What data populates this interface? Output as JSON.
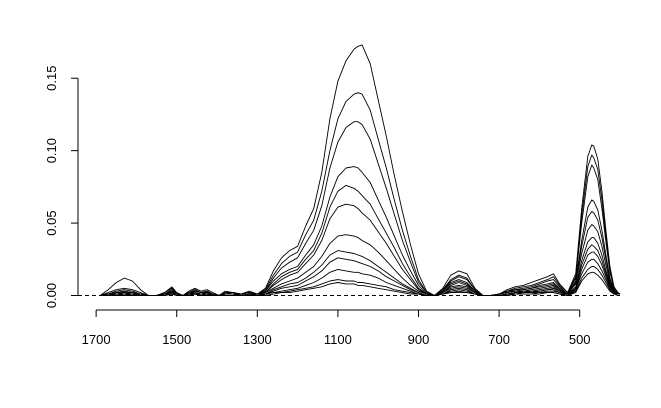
{
  "chart_data": {
    "type": "line",
    "title": "",
    "xlabel": "",
    "ylabel": "",
    "x_reversed": true,
    "xlim": [
      1745,
      400
    ],
    "ylim": [
      -0.01,
      0.175
    ],
    "x_ticks": [
      1700,
      1500,
      1300,
      1100,
      900,
      700,
      500
    ],
    "y_ticks": [
      0.0,
      0.05,
      0.1,
      0.15
    ],
    "x_tick_labels": [
      "1700",
      "1500",
      "1300",
      "1100",
      "900",
      "700",
      "500"
    ],
    "y_tick_labels": [
      "0.00",
      "0.05",
      "0.10",
      "0.15"
    ],
    "reference_line": {
      "y": 0.0,
      "style": "dashed"
    },
    "grid": false,
    "legend": "none",
    "line_color": "#000000",
    "x": [
      1690,
      1670,
      1650,
      1630,
      1610,
      1590,
      1570,
      1550,
      1530,
      1512,
      1500,
      1485,
      1470,
      1455,
      1440,
      1425,
      1410,
      1395,
      1380,
      1360,
      1340,
      1320,
      1300,
      1280,
      1260,
      1240,
      1220,
      1200,
      1180,
      1160,
      1140,
      1120,
      1100,
      1080,
      1060,
      1050,
      1040,
      1020,
      1000,
      980,
      960,
      940,
      920,
      900,
      880,
      860,
      840,
      820,
      800,
      780,
      760,
      740,
      720,
      700,
      680,
      660,
      640,
      620,
      600,
      580,
      565,
      550,
      530,
      510,
      495,
      480,
      470,
      465,
      455,
      445,
      435,
      425,
      415,
      405,
      400
    ],
    "series": [
      {
        "values": [
          0,
          0.004,
          0.009,
          0.012,
          0.01,
          0.004,
          0,
          0,
          0.002,
          0.005,
          0.001,
          0,
          0.003,
          0.005,
          0.003,
          0.004,
          0.002,
          0,
          0.003,
          0.002,
          0.001,
          0.003,
          0.001,
          0.005,
          0.017,
          0.026,
          0.031,
          0.034,
          0.048,
          0.06,
          0.085,
          0.122,
          0.148,
          0.162,
          0.17,
          0.172,
          0.173,
          0.16,
          0.135,
          0.11,
          0.083,
          0.058,
          0.035,
          0.015,
          0.003,
          0,
          0.005,
          0.014,
          0.017,
          0.015,
          0.005,
          0,
          0,
          0.001,
          0.004,
          0.006,
          0.007,
          0.009,
          0.011,
          0.013,
          0.015,
          0.008,
          0.002,
          0.015,
          0.06,
          0.096,
          0.104,
          0.103,
          0.094,
          0.072,
          0.045,
          0.02,
          0.006,
          0.002,
          0.001
        ]
      },
      {
        "values": [
          0,
          0.002,
          0.004,
          0.005,
          0.004,
          0.002,
          0,
          0,
          0.002,
          0.006,
          0.002,
          0,
          0.002,
          0.004,
          0.002,
          0.003,
          0.001,
          0,
          0.002,
          0.002,
          0.001,
          0.002,
          0.001,
          0.004,
          0.014,
          0.022,
          0.027,
          0.03,
          0.042,
          0.052,
          0.072,
          0.1,
          0.122,
          0.134,
          0.139,
          0.14,
          0.139,
          0.128,
          0.108,
          0.088,
          0.066,
          0.045,
          0.027,
          0.011,
          0.002,
          0,
          0.004,
          0.011,
          0.014,
          0.012,
          0.004,
          0,
          0,
          0.001,
          0.003,
          0.005,
          0.006,
          0.007,
          0.009,
          0.011,
          0.013,
          0.007,
          0.002,
          0.013,
          0.055,
          0.089,
          0.097,
          0.095,
          0.087,
          0.066,
          0.041,
          0.018,
          0.005,
          0.002,
          0.001
        ]
      },
      {
        "values": [
          0,
          0.001,
          0.003,
          0.004,
          0.003,
          0.001,
          0,
          0,
          0.002,
          0.005,
          0.002,
          0,
          0.002,
          0.004,
          0.002,
          0.003,
          0.001,
          0,
          0.002,
          0.002,
          0.001,
          0.002,
          0.001,
          0.003,
          0.012,
          0.019,
          0.023,
          0.026,
          0.036,
          0.045,
          0.062,
          0.088,
          0.106,
          0.116,
          0.12,
          0.12,
          0.118,
          0.108,
          0.091,
          0.074,
          0.056,
          0.038,
          0.023,
          0.009,
          0.002,
          0,
          0.003,
          0.01,
          0.013,
          0.011,
          0.004,
          0,
          0,
          0.001,
          0.003,
          0.004,
          0.005,
          0.006,
          0.008,
          0.01,
          0.011,
          0.006,
          0.001,
          0.012,
          0.05,
          0.082,
          0.09,
          0.088,
          0.08,
          0.06,
          0.037,
          0.016,
          0.005,
          0.002,
          0.001
        ]
      },
      {
        "values": [
          0,
          0.001,
          0.002,
          0.003,
          0.002,
          0.001,
          0,
          0,
          0.001,
          0.004,
          0.001,
          0,
          0.002,
          0.003,
          0.002,
          0.002,
          0.001,
          0,
          0.002,
          0.001,
          0.001,
          0.002,
          0.001,
          0.003,
          0.01,
          0.015,
          0.018,
          0.02,
          0.028,
          0.035,
          0.048,
          0.068,
          0.082,
          0.088,
          0.089,
          0.088,
          0.085,
          0.078,
          0.066,
          0.054,
          0.041,
          0.028,
          0.017,
          0.007,
          0.001,
          0,
          0.003,
          0.009,
          0.011,
          0.009,
          0.003,
          0,
          0,
          0.001,
          0.002,
          0.004,
          0.004,
          0.005,
          0.007,
          0.008,
          0.009,
          0.005,
          0.001,
          0.01,
          0.038,
          0.061,
          0.066,
          0.065,
          0.059,
          0.045,
          0.028,
          0.012,
          0.004,
          0.001,
          0.001
        ]
      },
      {
        "values": [
          0,
          0.001,
          0.002,
          0.003,
          0.002,
          0.001,
          0,
          0,
          0.001,
          0.003,
          0.001,
          0,
          0.001,
          0.003,
          0.002,
          0.002,
          0.001,
          0,
          0.001,
          0.001,
          0.001,
          0.002,
          0.001,
          0.002,
          0.008,
          0.013,
          0.016,
          0.018,
          0.025,
          0.031,
          0.043,
          0.061,
          0.072,
          0.076,
          0.074,
          0.072,
          0.069,
          0.063,
          0.053,
          0.043,
          0.033,
          0.022,
          0.013,
          0.005,
          0.001,
          0,
          0.003,
          0.008,
          0.01,
          0.008,
          0.003,
          0,
          0,
          0.001,
          0.002,
          0.003,
          0.004,
          0.005,
          0.006,
          0.007,
          0.008,
          0.004,
          0.001,
          0.009,
          0.034,
          0.054,
          0.058,
          0.057,
          0.052,
          0.04,
          0.025,
          0.011,
          0.003,
          0.001,
          0.001
        ]
      },
      {
        "values": [
          0,
          0.001,
          0.002,
          0.002,
          0.002,
          0.001,
          0,
          0,
          0.001,
          0.003,
          0.001,
          0,
          0.001,
          0.002,
          0.001,
          0.002,
          0.001,
          0,
          0.001,
          0.001,
          0,
          0.001,
          0.001,
          0.002,
          0.007,
          0.011,
          0.014,
          0.016,
          0.022,
          0.028,
          0.038,
          0.053,
          0.061,
          0.063,
          0.062,
          0.06,
          0.057,
          0.052,
          0.044,
          0.036,
          0.027,
          0.018,
          0.011,
          0.004,
          0.001,
          0,
          0.002,
          0.007,
          0.009,
          0.007,
          0.003,
          0,
          0,
          0.001,
          0.002,
          0.003,
          0.003,
          0.004,
          0.005,
          0.006,
          0.007,
          0.004,
          0.001,
          0.008,
          0.029,
          0.045,
          0.049,
          0.048,
          0.044,
          0.034,
          0.021,
          0.009,
          0.003,
          0.001,
          0.001
        ]
      },
      {
        "values": [
          0,
          0.001,
          0.001,
          0.002,
          0.001,
          0.001,
          0,
          0,
          0.001,
          0.002,
          0.001,
          0,
          0.001,
          0.002,
          0.001,
          0.001,
          0.001,
          0,
          0.001,
          0.001,
          0,
          0.001,
          0,
          0.002,
          0.005,
          0.008,
          0.01,
          0.012,
          0.016,
          0.02,
          0.027,
          0.036,
          0.041,
          0.042,
          0.041,
          0.04,
          0.038,
          0.035,
          0.03,
          0.024,
          0.018,
          0.012,
          0.007,
          0.003,
          0.001,
          0,
          0.002,
          0.006,
          0.007,
          0.006,
          0.002,
          0,
          0,
          0,
          0.001,
          0.002,
          0.003,
          0.003,
          0.004,
          0.005,
          0.006,
          0.003,
          0.001,
          0.006,
          0.024,
          0.037,
          0.04,
          0.04,
          0.036,
          0.028,
          0.017,
          0.008,
          0.002,
          0.001,
          0.001
        ]
      },
      {
        "values": [
          0,
          0,
          0.001,
          0.001,
          0.001,
          0,
          0,
          0,
          0.001,
          0.002,
          0.001,
          0,
          0.001,
          0.001,
          0.001,
          0.001,
          0,
          0,
          0.001,
          0.001,
          0,
          0.001,
          0,
          0.001,
          0.004,
          0.006,
          0.008,
          0.009,
          0.012,
          0.016,
          0.021,
          0.028,
          0.031,
          0.03,
          0.029,
          0.028,
          0.027,
          0.024,
          0.02,
          0.016,
          0.012,
          0.008,
          0.005,
          0.002,
          0,
          0,
          0.002,
          0.005,
          0.006,
          0.005,
          0.002,
          0,
          0,
          0,
          0.001,
          0.002,
          0.002,
          0.003,
          0.003,
          0.004,
          0.005,
          0.003,
          0.001,
          0.005,
          0.021,
          0.032,
          0.035,
          0.034,
          0.031,
          0.024,
          0.015,
          0.007,
          0.002,
          0.001,
          0.001
        ]
      },
      {
        "values": [
          0,
          0,
          0.001,
          0.001,
          0.001,
          0,
          0,
          0,
          0.001,
          0.002,
          0,
          0,
          0.001,
          0.001,
          0.001,
          0.001,
          0,
          0,
          0.001,
          0.001,
          0,
          0.001,
          0,
          0.001,
          0.003,
          0.005,
          0.006,
          0.007,
          0.01,
          0.013,
          0.017,
          0.023,
          0.026,
          0.025,
          0.024,
          0.023,
          0.022,
          0.02,
          0.017,
          0.013,
          0.01,
          0.007,
          0.004,
          0.002,
          0,
          0,
          0.001,
          0.004,
          0.005,
          0.004,
          0.001,
          0,
          0,
          0,
          0.001,
          0.002,
          0.002,
          0.002,
          0.003,
          0.004,
          0.004,
          0.002,
          0.001,
          0.004,
          0.018,
          0.028,
          0.03,
          0.03,
          0.027,
          0.021,
          0.013,
          0.006,
          0.002,
          0.001,
          0.001
        ]
      },
      {
        "values": [
          0,
          0,
          0.001,
          0.001,
          0.001,
          0,
          0,
          0,
          0.001,
          0.001,
          0,
          0,
          0.001,
          0.001,
          0.001,
          0.001,
          0,
          0,
          0,
          0,
          0,
          0,
          0,
          0.001,
          0.002,
          0.003,
          0.004,
          0.005,
          0.007,
          0.009,
          0.012,
          0.016,
          0.018,
          0.017,
          0.016,
          0.016,
          0.015,
          0.014,
          0.012,
          0.009,
          0.007,
          0.005,
          0.003,
          0.001,
          0,
          0,
          0.001,
          0.003,
          0.004,
          0.003,
          0.001,
          0,
          0,
          0,
          0.001,
          0.001,
          0.002,
          0.002,
          0.002,
          0.003,
          0.003,
          0.002,
          0,
          0.004,
          0.015,
          0.023,
          0.025,
          0.025,
          0.022,
          0.017,
          0.011,
          0.005,
          0.001,
          0.001,
          0.001
        ]
      },
      {
        "values": [
          0,
          0,
          0,
          0.001,
          0,
          0,
          0,
          0,
          0,
          0.001,
          0,
          0,
          0,
          0.001,
          0,
          0.001,
          0,
          0,
          0,
          0,
          0,
          0,
          0,
          0.001,
          0.002,
          0.002,
          0.003,
          0.004,
          0.005,
          0.006,
          0.008,
          0.01,
          0.011,
          0.01,
          0.01,
          0.009,
          0.009,
          0.008,
          0.007,
          0.006,
          0.004,
          0.003,
          0.002,
          0.001,
          0,
          0,
          0.001,
          0.002,
          0.003,
          0.002,
          0.001,
          0,
          0,
          0,
          0,
          0.001,
          0.001,
          0.001,
          0.002,
          0.002,
          0.002,
          0.001,
          0,
          0.003,
          0.012,
          0.018,
          0.02,
          0.02,
          0.018,
          0.014,
          0.009,
          0.004,
          0.001,
          0.001,
          0.001
        ]
      },
      {
        "values": [
          0,
          0,
          0,
          0,
          0,
          0,
          0,
          0,
          0,
          0.001,
          0,
          0,
          0,
          0.001,
          0,
          0,
          0,
          0,
          0,
          0,
          0,
          0,
          0,
          0,
          0.001,
          0.002,
          0.002,
          0.003,
          0.004,
          0.005,
          0.006,
          0.008,
          0.009,
          0.008,
          0.008,
          0.007,
          0.007,
          0.006,
          0.005,
          0.004,
          0.003,
          0.002,
          0.001,
          0.001,
          0,
          0,
          0.001,
          0.002,
          0.002,
          0.002,
          0.001,
          0,
          0,
          0,
          0,
          0.001,
          0.001,
          0.001,
          0.001,
          0.002,
          0.002,
          0.001,
          0,
          0.002,
          0.01,
          0.015,
          0.016,
          0.016,
          0.014,
          0.011,
          0.007,
          0.003,
          0.001,
          0,
          0
        ]
      }
    ]
  }
}
